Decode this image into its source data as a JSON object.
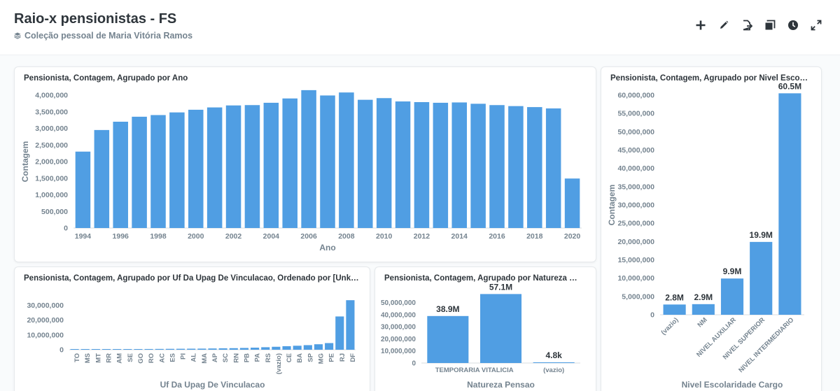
{
  "header": {
    "title": "Raio-x pensionistas - FS",
    "collection": "Coleção pessoal de Maria Vitória Ramos",
    "actions": [
      {
        "name": "add-icon",
        "label": "Adicionar"
      },
      {
        "name": "edit-icon",
        "label": "Editar"
      },
      {
        "name": "move-icon",
        "label": "Mover"
      },
      {
        "name": "duplicate-icon",
        "label": "Duplicar"
      },
      {
        "name": "history-icon",
        "label": "Histórico"
      },
      {
        "name": "fullscreen-icon",
        "label": "Tela cheia"
      }
    ]
  },
  "colors": {
    "bar": "#509ee3",
    "axis_text": "#74838f",
    "label_text": "#2e353b"
  },
  "chart_data": [
    {
      "id": "por-ano",
      "type": "bar",
      "title": "Pensionista, Contagem, Agrupado por Ano",
      "xlabel": "Ano",
      "ylabel": "Contagem",
      "ylim": [
        0,
        4000000
      ],
      "yticks": [
        "0",
        "500,000",
        "1,000,000",
        "1,500,000",
        "2,000,000",
        "2,500,000",
        "3,000,000",
        "3,500,000",
        "4,000,000"
      ],
      "ytick_values": [
        0,
        500000,
        1000000,
        1500000,
        2000000,
        2500000,
        3000000,
        3500000,
        4000000
      ],
      "categories": [
        "1994",
        "1995",
        "1996",
        "1997",
        "1998",
        "1999",
        "2000",
        "2001",
        "2002",
        "2003",
        "2004",
        "2005",
        "2006",
        "2007",
        "2008",
        "2009",
        "2010",
        "2011",
        "2012",
        "2013",
        "2014",
        "2015",
        "2016",
        "2017",
        "2018",
        "2019",
        "2020"
      ],
      "tick_labels": [
        "1994",
        "",
        "1996",
        "",
        "1998",
        "",
        "2000",
        "",
        "2002",
        "",
        "2004",
        "",
        "2006",
        "",
        "2008",
        "",
        "2010",
        "",
        "2012",
        "",
        "2014",
        "",
        "2016",
        "",
        "2018",
        "",
        "2020"
      ],
      "values": [
        2300000,
        2950000,
        3200000,
        3350000,
        3400000,
        3480000,
        3560000,
        3630000,
        3690000,
        3700000,
        3770000,
        3900000,
        4150000,
        3990000,
        4080000,
        3860000,
        3910000,
        3810000,
        3790000,
        3770000,
        3780000,
        3740000,
        3700000,
        3670000,
        3640000,
        3600000,
        1490000
      ]
    },
    {
      "id": "por-uf",
      "type": "bar",
      "title": "Pensionista, Contagem, Agrupado por Uf Da Upag De Vinculacao, Ordenado por [Unknown ...",
      "xlabel": "Uf Da Upag De Vinculacao",
      "ylabel": "",
      "ylim": [
        0,
        35000000
      ],
      "yticks": [
        "0",
        "10,000,000",
        "20,000,000",
        "30,000,000"
      ],
      "ytick_values": [
        0,
        10000000,
        20000000,
        30000000
      ],
      "categories": [
        "TO",
        "MS",
        "MT",
        "RR",
        "AM",
        "SE",
        "GO",
        "RO",
        "AC",
        "ES",
        "PI",
        "AL",
        "MA",
        "AP",
        "SC",
        "RN",
        "PB",
        "PA",
        "RS",
        "(vazio)",
        "CE",
        "BA",
        "SP",
        "MG",
        "PE",
        "RJ",
        "DF"
      ],
      "tick_labels": [
        "TO",
        "MS",
        "MT",
        "RR",
        "AM",
        "SE",
        "GO",
        "RO",
        "AC",
        "ES",
        "PI",
        "AL",
        "MA",
        "AP",
        "SC",
        "RN",
        "PB",
        "PA",
        "RS",
        "(vazio)",
        "CE",
        "BA",
        "SP",
        "MG",
        "PE",
        "RJ",
        "DF"
      ],
      "values": [
        150000,
        200000,
        250000,
        300000,
        350000,
        400000,
        450000,
        500000,
        550000,
        600000,
        650000,
        700000,
        750000,
        850000,
        950000,
        1050000,
        1200000,
        1400000,
        1700000,
        2000000,
        2400000,
        2700000,
        3100000,
        3700000,
        4500000,
        22500000,
        33500000
      ]
    },
    {
      "id": "por-natureza",
      "type": "bar",
      "title": "Pensionista, Contagem, Agrupado por Natureza Pensao",
      "xlabel": "Natureza Pensao",
      "ylabel": "",
      "ylim": [
        0,
        55000000
      ],
      "yticks": [
        "0",
        "10,000,000",
        "20,000,000",
        "30,000,000",
        "40,000,000",
        "50,000,000"
      ],
      "ytick_values": [
        0,
        10000000,
        20000000,
        30000000,
        40000000,
        50000000
      ],
      "categories": [
        "TEMPORARIA",
        "VITALICIA",
        "(vazio)"
      ],
      "tick_labels": [
        "TEMPORARIA",
        "VITALICIA",
        "(vazio)"
      ],
      "values": [
        38900000,
        57100000,
        4800
      ],
      "data_labels": [
        "38.9M",
        "57.1M",
        "4.8k"
      ]
    },
    {
      "id": "por-escolaridade",
      "type": "bar",
      "title": "Pensionista, Contagem, Agrupado por Nivel Escolaridade Cargo",
      "xlabel": "Nivel Escolaridade Cargo",
      "ylabel": "Contagem",
      "ylim": [
        0,
        60000000
      ],
      "yticks": [
        "0",
        "5,000,000",
        "10,000,000",
        "15,000,000",
        "20,000,000",
        "25,000,000",
        "30,000,000",
        "35,000,000",
        "40,000,000",
        "45,000,000",
        "50,000,000",
        "55,000,000",
        "60,000,000"
      ],
      "ytick_values": [
        0,
        5000000,
        10000000,
        15000000,
        20000000,
        25000000,
        30000000,
        35000000,
        40000000,
        45000000,
        50000000,
        55000000,
        60000000
      ],
      "categories": [
        "(vazio)",
        "NM",
        "NIVEL AUXILIAR",
        "NIVEL SUPERIOR",
        "NIVEL INTERMEDIARIO"
      ],
      "tick_labels": [
        "(vazio)",
        "NM",
        "NIVEL AUXILIAR",
        "NIVEL SUPERIOR",
        "NIVEL INTERMEDIARIO"
      ],
      "values": [
        2800000,
        2900000,
        9900000,
        19900000,
        60500000
      ],
      "data_labels": [
        "2.8M",
        "2.9M",
        "9.9M",
        "19.9M",
        "60.5M"
      ]
    }
  ]
}
